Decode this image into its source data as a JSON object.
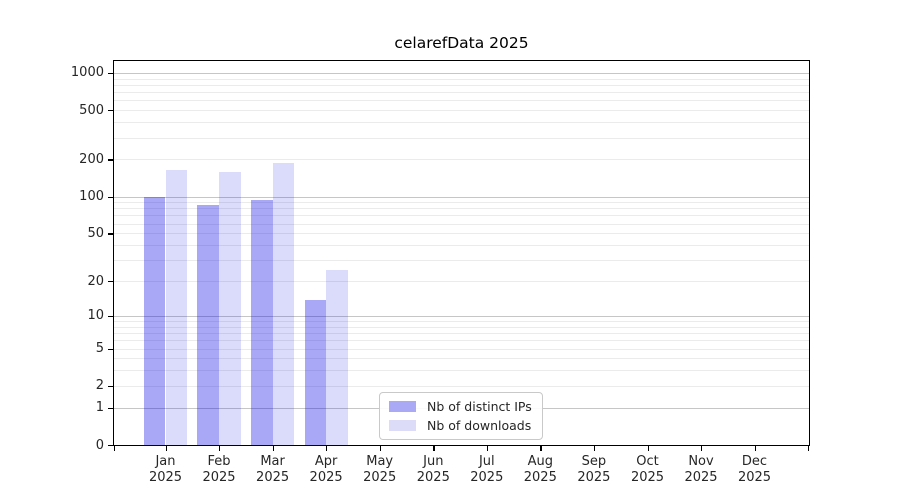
{
  "chart_data": {
    "type": "bar",
    "title": "celarefData 2025",
    "year_label": "2025",
    "categories": [
      "Jan",
      "Feb",
      "Mar",
      "Apr",
      "May",
      "Jun",
      "Jul",
      "Aug",
      "Sep",
      "Oct",
      "Nov",
      "Dec"
    ],
    "series": [
      {
        "name": "Nb of distinct IPs",
        "values": [
          100,
          85,
          95,
          14,
          null,
          null,
          null,
          null,
          null,
          null,
          null,
          null
        ],
        "fill": "rgba(0,0,230,0.34)",
        "swatch": "#a9a9f6"
      },
      {
        "name": "Nb of downloads",
        "values": [
          165,
          160,
          190,
          25,
          null,
          null,
          null,
          null,
          null,
          null,
          null,
          null
        ],
        "fill": "rgba(0,0,230,0.14)",
        "swatch": "#dcdcf9"
      }
    ],
    "yticks": [
      0,
      1,
      2,
      5,
      10,
      20,
      50,
      100,
      200,
      500,
      1000
    ],
    "ylim": [
      0,
      1270
    ],
    "yscale": "log10(value+1)",
    "xlabel": "",
    "ylabel": "",
    "grid": "horizontal major+minor",
    "legend_position": "inside-bottom-center"
  },
  "colors": {
    "grid_major": "#c6c6c6",
    "grid_minor": "#ebebeb",
    "axis": "#000000",
    "tick_text": "#262626",
    "title_text": "#000000"
  }
}
